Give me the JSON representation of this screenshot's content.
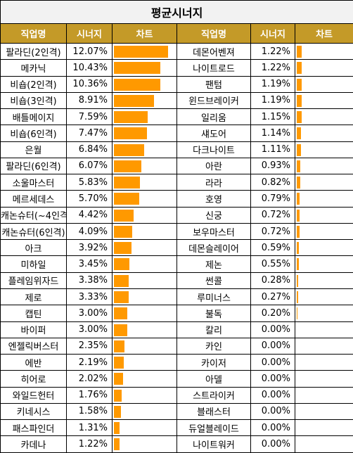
{
  "title": "평균시너지",
  "headers": {
    "job": "직업명",
    "synergy": "시너지",
    "chart": "차트"
  },
  "colors": {
    "header_bg": "#c49a28",
    "bar": "#ff9900",
    "title_bg": "#f2f2f2"
  },
  "chart_data": {
    "type": "table",
    "title": "평균시너지",
    "columns": [
      "직업명",
      "시너지",
      "차트"
    ],
    "max_value": 12.07,
    "left": [
      {
        "name": "팔라딘(2인격)",
        "value": 12.07,
        "label": "12.07%"
      },
      {
        "name": "메카닉",
        "value": 10.43,
        "label": "10.43%"
      },
      {
        "name": "비숍(2인격)",
        "value": 10.36,
        "label": "10.36%"
      },
      {
        "name": "비숍(3인격)",
        "value": 8.91,
        "label": "8.91%"
      },
      {
        "name": "배틀메이지",
        "value": 7.59,
        "label": "7.59%"
      },
      {
        "name": "비숍(6인격)",
        "value": 7.47,
        "label": "7.47%"
      },
      {
        "name": "은월",
        "value": 6.84,
        "label": "6.84%"
      },
      {
        "name": "팔라딘(6인격)",
        "value": 6.07,
        "label": "6.07%"
      },
      {
        "name": "소울마스터",
        "value": 5.83,
        "label": "5.83%"
      },
      {
        "name": "메르세데스",
        "value": 5.7,
        "label": "5.70%"
      },
      {
        "name": "캐논슈터(~4인격)",
        "value": 4.42,
        "label": "4.42%"
      },
      {
        "name": "캐논슈터(6인격)",
        "value": 4.09,
        "label": "4.09%"
      },
      {
        "name": "아크",
        "value": 3.92,
        "label": "3.92%"
      },
      {
        "name": "미하일",
        "value": 3.45,
        "label": "3.45%"
      },
      {
        "name": "플레임위자드",
        "value": 3.38,
        "label": "3.38%"
      },
      {
        "name": "제로",
        "value": 3.33,
        "label": "3.33%"
      },
      {
        "name": "캡틴",
        "value": 3.0,
        "label": "3.00%"
      },
      {
        "name": "바이퍼",
        "value": 3.0,
        "label": "3.00%"
      },
      {
        "name": "엔젤릭버스터",
        "value": 2.35,
        "label": "2.35%"
      },
      {
        "name": "에반",
        "value": 2.19,
        "label": "2.19%"
      },
      {
        "name": "히어로",
        "value": 2.02,
        "label": "2.02%"
      },
      {
        "name": "와일드헌터",
        "value": 1.76,
        "label": "1.76%"
      },
      {
        "name": "키네시스",
        "value": 1.58,
        "label": "1.58%"
      },
      {
        "name": "패스파인더",
        "value": 1.31,
        "label": "1.31%"
      },
      {
        "name": "카데나",
        "value": 1.22,
        "label": "1.22%"
      }
    ],
    "right": [
      {
        "name": "데몬어벤져",
        "value": 1.22,
        "label": "1.22%"
      },
      {
        "name": "나이트로드",
        "value": 1.22,
        "label": "1.22%"
      },
      {
        "name": "팬텀",
        "value": 1.19,
        "label": "1.19%"
      },
      {
        "name": "윈드브레이커",
        "value": 1.19,
        "label": "1.19%"
      },
      {
        "name": "일리움",
        "value": 1.15,
        "label": "1.15%"
      },
      {
        "name": "섀도어",
        "value": 1.14,
        "label": "1.14%"
      },
      {
        "name": "다크나이트",
        "value": 1.11,
        "label": "1.11%"
      },
      {
        "name": "아란",
        "value": 0.93,
        "label": "0.93%"
      },
      {
        "name": "라라",
        "value": 0.82,
        "label": "0.82%"
      },
      {
        "name": "호영",
        "value": 0.79,
        "label": "0.79%"
      },
      {
        "name": "신궁",
        "value": 0.72,
        "label": "0.72%"
      },
      {
        "name": "보우마스터",
        "value": 0.72,
        "label": "0.72%"
      },
      {
        "name": "데몬슬레이어",
        "value": 0.59,
        "label": "0.59%"
      },
      {
        "name": "제논",
        "value": 0.55,
        "label": "0.55%"
      },
      {
        "name": "썬콜",
        "value": 0.28,
        "label": "0.28%"
      },
      {
        "name": "루미너스",
        "value": 0.27,
        "label": "0.27%"
      },
      {
        "name": "불독",
        "value": 0.2,
        "label": "0.20%"
      },
      {
        "name": "칼리",
        "value": 0.0,
        "label": "0.00%"
      },
      {
        "name": "카인",
        "value": 0.0,
        "label": "0.00%"
      },
      {
        "name": "카이저",
        "value": 0.0,
        "label": "0.00%"
      },
      {
        "name": "아델",
        "value": 0.0,
        "label": "0.00%"
      },
      {
        "name": "스트라이커",
        "value": 0.0,
        "label": "0.00%"
      },
      {
        "name": "블래스터",
        "value": 0.0,
        "label": "0.00%"
      },
      {
        "name": "듀얼블레이드",
        "value": 0.0,
        "label": "0.00%"
      },
      {
        "name": "나이트워커",
        "value": 0.0,
        "label": "0.00%"
      }
    ]
  }
}
